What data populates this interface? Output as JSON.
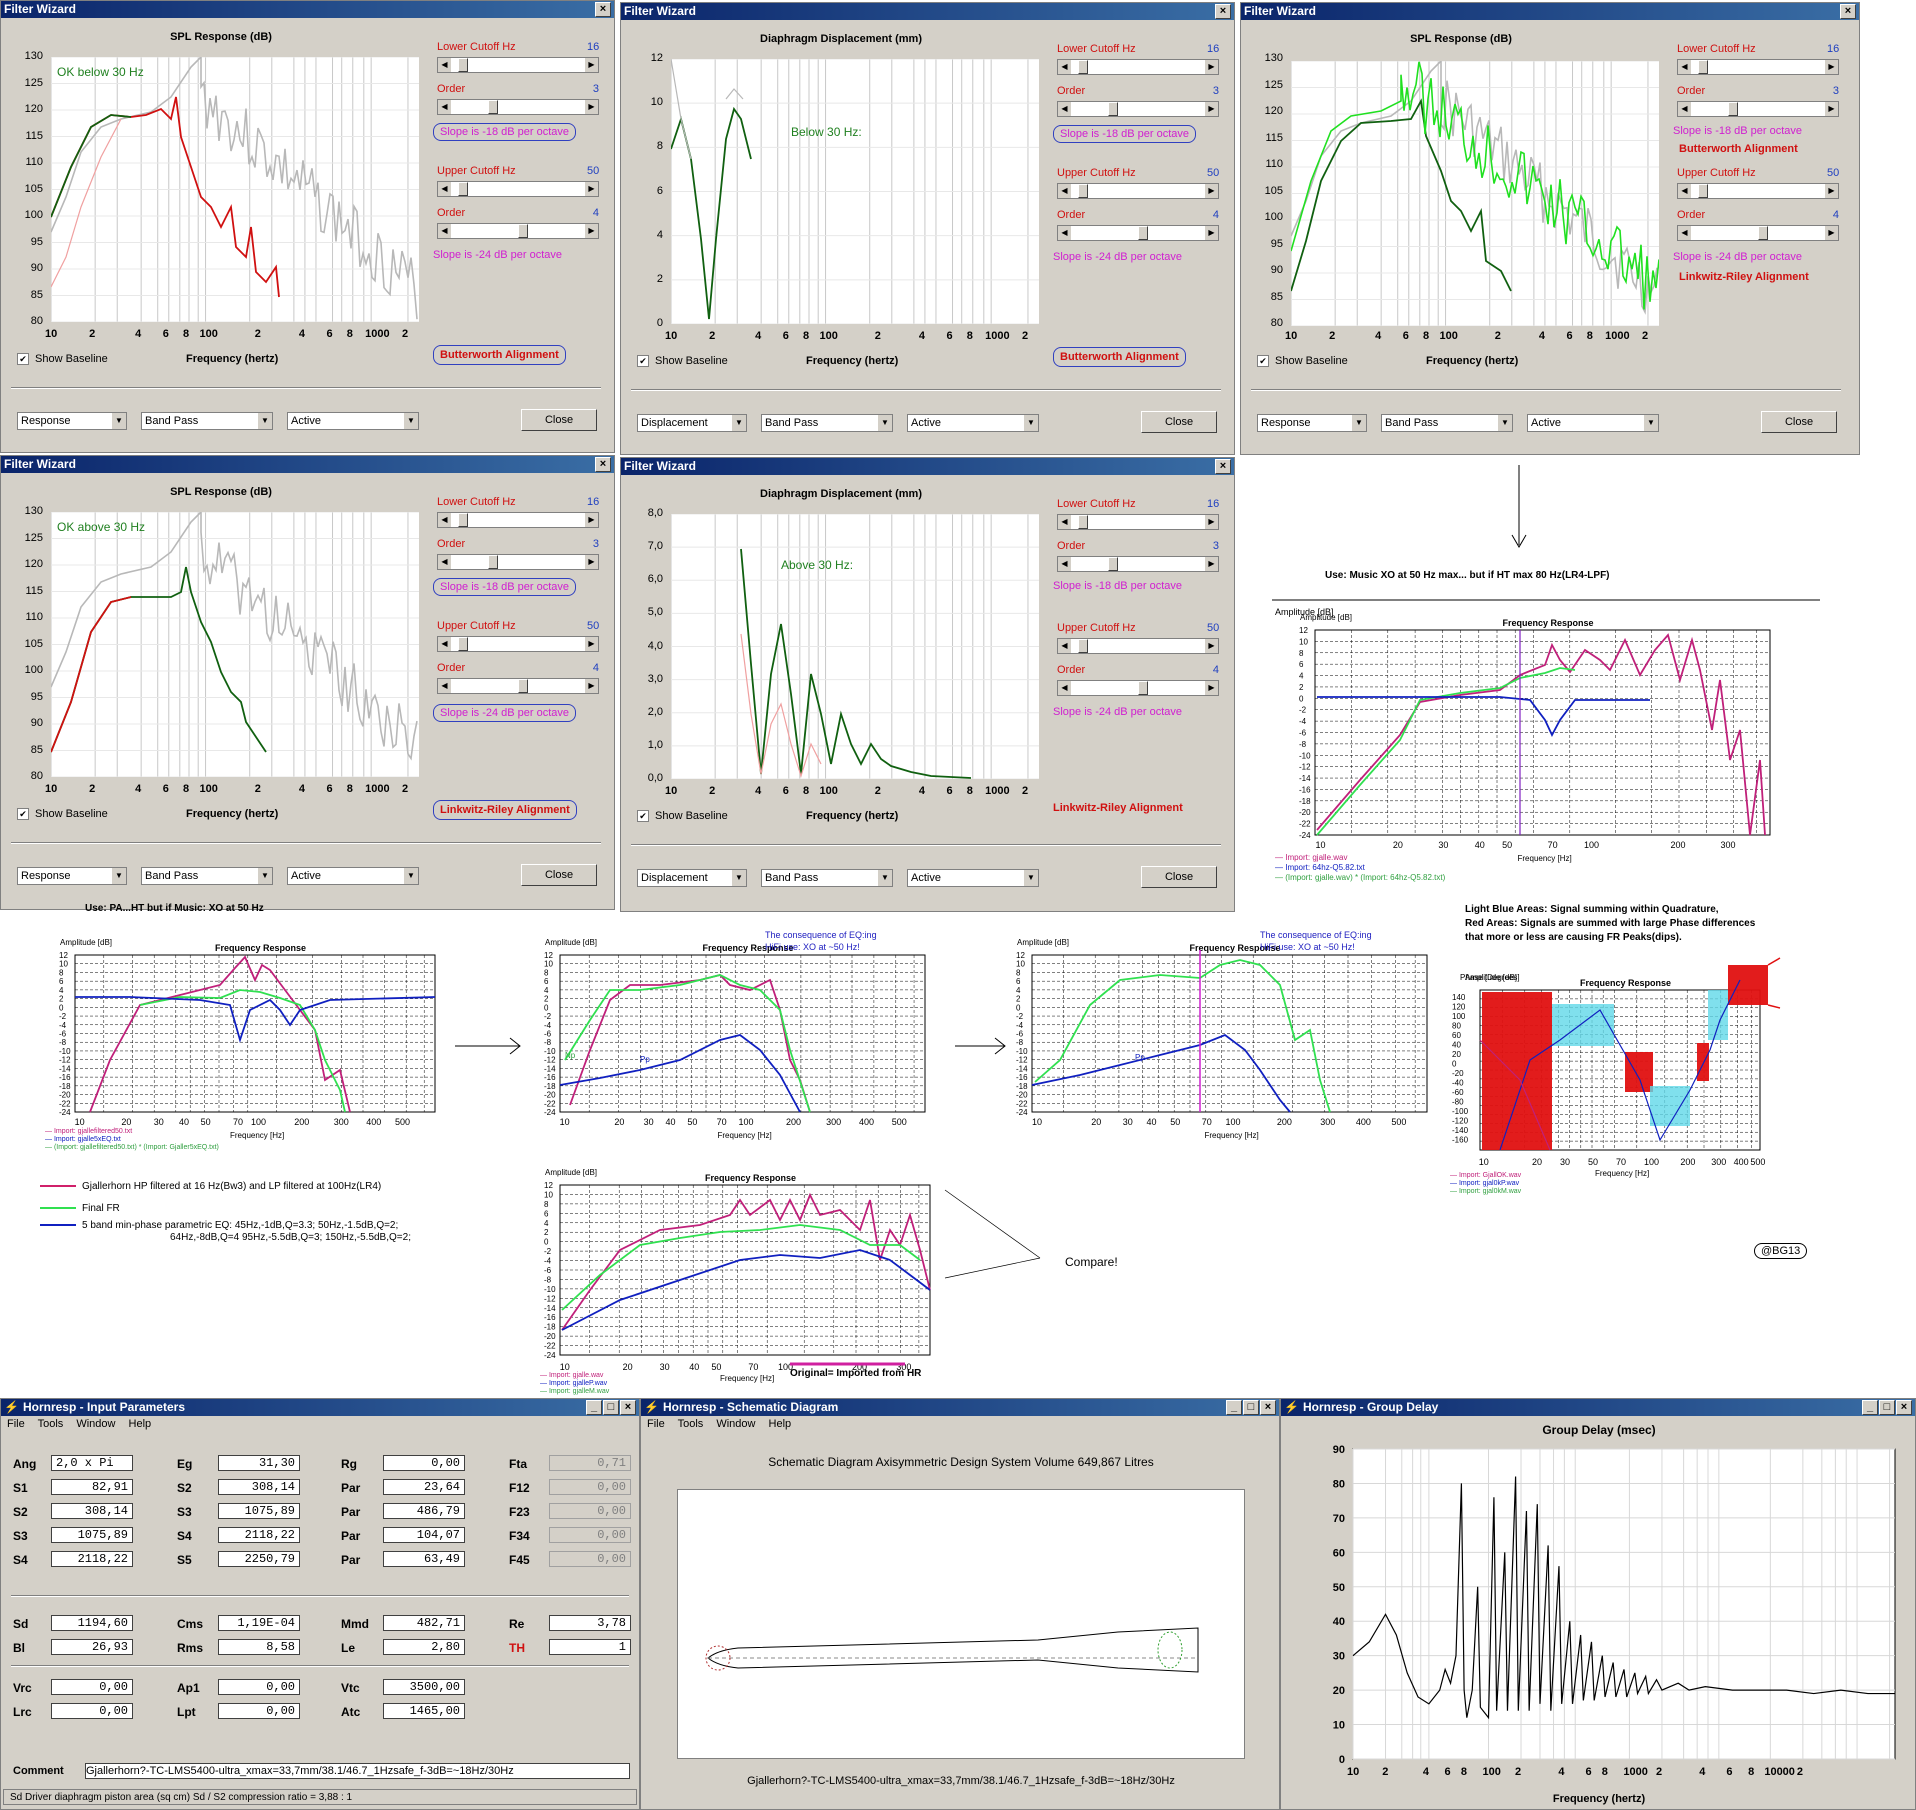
{
  "windows": {
    "filter_wizard_title": "Filter Wizard",
    "close_label": "Close",
    "show_baseline_label": "Show Baseline",
    "frequency_label": "Frequency (hertz)",
    "spl_title": "SPL Response (dB)",
    "disp_title": "Diaphragm Displacement (mm)",
    "lower_cutoff_label": "Lower Cutoff  Hz",
    "upper_cutoff_label": "Upper Cutoff  Hz",
    "order_label": "Order",
    "lower_cutoff_value": "16",
    "upper_cutoff_value": "50",
    "lower_order_value": "3",
    "upper_order_value": "4",
    "slope_lower": "Slope is -18 dB per octave",
    "slope_upper": "Slope is -24 dB per octave",
    "butterworth": "Butterworth Alignment",
    "linkwitz": "Linkwitz-Riley Alignment",
    "dd_response": "Response",
    "dd_displacement": "Displacement",
    "dd_bandpass": "Band Pass",
    "dd_active": "Active",
    "ann_ok_below": "OK below 30 Hz",
    "ann_below": "Below 30 Hz:",
    "ann_ok_above": "OK above 30 Hz",
    "ann_above": "Above 30 Hz:",
    "spl_yticks": [
      "130",
      "125",
      "120",
      "115",
      "110",
      "105",
      "100",
      "95",
      "90",
      "85",
      "80"
    ],
    "disp_yticks_top": [
      "12",
      "10",
      "8",
      "6",
      "4",
      "2",
      "0"
    ],
    "disp_yticks_bottom": [
      "8,0",
      "7,0",
      "6,0",
      "5,0",
      "4,0",
      "3,0",
      "2,0",
      "1,0",
      "0,0"
    ],
    "xticks": [
      "10",
      "2",
      "4",
      "6",
      "8",
      "100",
      "2",
      "4",
      "6",
      "8",
      "1000",
      "2"
    ]
  },
  "annotations": {
    "use_music": "Use: Music XO at 50 Hz max... but if HT max 80 Hz(LR4-LPF)",
    "use_pa": "Use: PA...HT but if Music: XO at 50 Hz",
    "compare": "Compare!",
    "consequence": "The consequence of EQ:ing",
    "hifi": "HiFi use: XO at ~50 Hz!",
    "original": "Original= Imported from HR",
    "light_blue": "Light Blue Areas: Signal summing within Quadrature,",
    "red_areas_1": "Red Areas: Signals are summed with large Phase differences",
    "red_areas_2": "that more or less are causing FR Peaks(dips).",
    "signature": "@BG13",
    "legend_pa_1": "Gjallerhorn HP filtered at 16 Hz(Bw3) and LP filtered at 100Hz(LR4)",
    "legend_pa_2": "Final FR",
    "legend_pa_3": "5 band min-phase parametric EQ:  45Hz,-1dB,Q=3.3;     50Hz,-1.5dB,Q=2;",
    "legend_pa_4": "64Hz,-8dB,Q=4     95Hz,-5.5dB,Q=3;   150Hz,-5.5dB,Q=2;"
  },
  "fr_charts": {
    "amplitude": "Amplitude [dB]",
    "title": "Frequency Response",
    "xlabel": "Frequency [Hz]",
    "phase_ylabel": "Phase [Degrees]"
  },
  "hornresp": {
    "input_title": "Hornresp - Input Parameters",
    "schematic_title": "Hornresp - Schematic Diagram",
    "gd_title": "Hornresp - Group Delay",
    "menu": [
      "File",
      "Tools",
      "Window",
      "Help"
    ],
    "schematic_heading": "Schematic Diagram   Axisymmetric Design   System Volume 649,867 Litres",
    "schematic_caption": "Gjallerhorn?-TC-LMS5400-ultra_xmax=33,7mm/38.1/46.7_1Hzsafe_f-3dB=~18Hz/30Hz",
    "gd_chart_title": "Group Delay (msec)",
    "gd_xlabel": "Frequency (hertz)",
    "gd_yticks": [
      "90",
      "80",
      "70",
      "60",
      "50",
      "40",
      "30",
      "20",
      "10",
      "0"
    ],
    "gd_xticks": [
      "10",
      "2",
      "4",
      "6",
      "8",
      "100",
      "2",
      "4",
      "6",
      "8",
      "1000",
      "2",
      "4",
      "6",
      "8",
      "10000",
      "2"
    ],
    "comment_label": "Comment",
    "comment_value": "Gjallerhorn?-TC-LMS5400-ultra_xmax=33,7mm/38.1/46.7_1Hzsafe_f-3dB=~18Hz/30Hz",
    "status": "Sd   Driver diaphragm piston area (sq cm)   Sd / S2 compression ratio = 3,88 : 1",
    "params": [
      [
        "Ang",
        "2,0 x Pi",
        "Eg",
        "31,30",
        "Rg",
        "0,00",
        "Fta",
        "0,71"
      ],
      [
        "S1",
        "82,91",
        "S2",
        "308,14",
        "Par",
        "23,64",
        "F12",
        "0,00"
      ],
      [
        "S2",
        "308,14",
        "S3",
        "1075,89",
        "Par",
        "486,79",
        "F23",
        "0,00"
      ],
      [
        "S3",
        "1075,89",
        "S4",
        "2118,22",
        "Par",
        "104,07",
        "F34",
        "0,00"
      ],
      [
        "S4",
        "2118,22",
        "S5",
        "2250,79",
        "Par",
        "63,49",
        "F45",
        "0,00"
      ],
      [
        "Sd",
        "1194,60",
        "Cms",
        "1,19E-04",
        "Mmd",
        "482,71",
        "Re",
        "3,78"
      ],
      [
        "Bl",
        "26,93",
        "Rms",
        "8,58",
        "Le",
        "2,80",
        "TH",
        "1"
      ],
      [
        "Vrc",
        "0,00",
        "Ap1",
        "0,00",
        "Vtc",
        "3500,00",
        "",
        ""
      ],
      [
        "Lrc",
        "0,00",
        "Lpt",
        "0,00",
        "Atc",
        "1465,00",
        "",
        ""
      ]
    ]
  }
}
